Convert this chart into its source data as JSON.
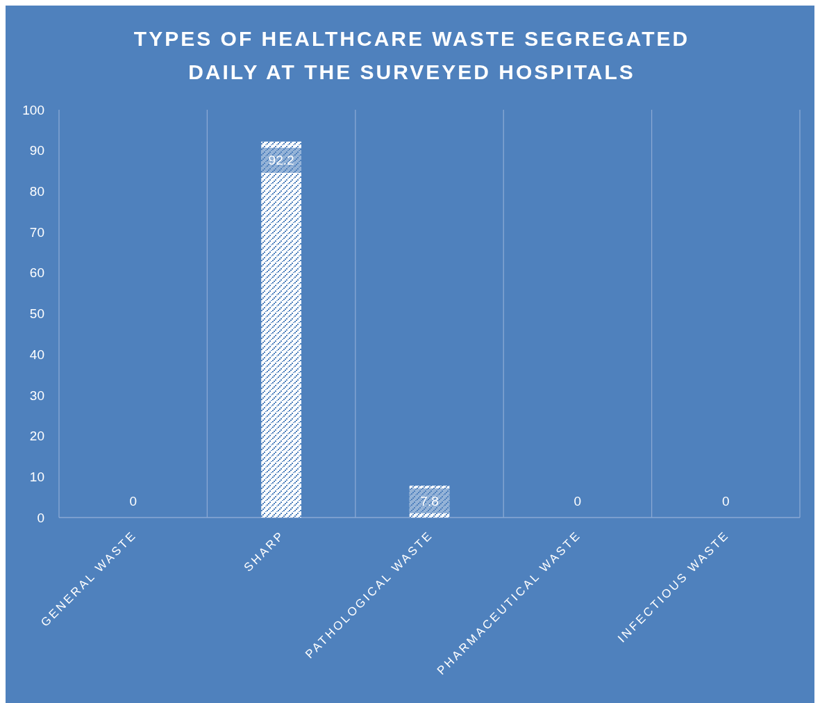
{
  "chart_data": {
    "type": "bar",
    "title": "TYPES OF HEALTHCARE WASTE SEGREGATED DAILY AT THE SURVEYED HOSPITALS",
    "categories": [
      "GENERAL WASTE",
      "SHARP",
      "PATHOLOGICAL WASTE",
      "PHARMACEUTICAL WASTE",
      "INFECTIOUS WASTE"
    ],
    "values": [
      0,
      92.2,
      7.8,
      0,
      0
    ],
    "color": "#ffffff",
    "ylim": [
      0,
      100
    ],
    "yticks": [
      0,
      10,
      20,
      30,
      40,
      50,
      60,
      70,
      80,
      90,
      100
    ],
    "grid": "x",
    "data_labels": true
  }
}
